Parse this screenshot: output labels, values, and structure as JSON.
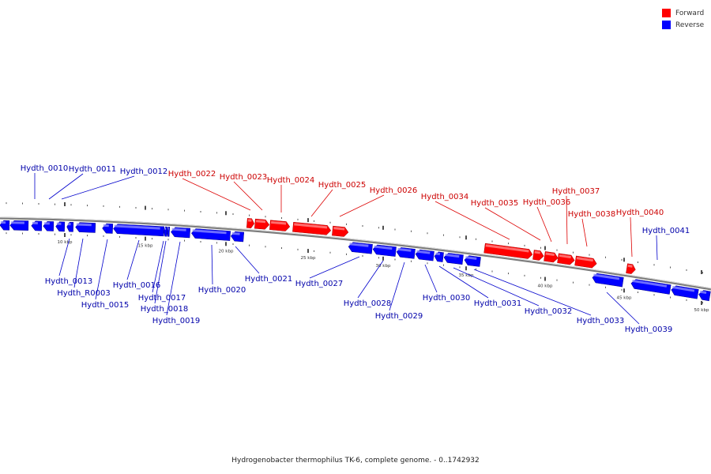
{
  "caption": "Hydrogenobacter thermophilus TK-6, complete genome. - 0..1742932",
  "legend": {
    "forward_label": "Forward",
    "reverse_label": "Reverse",
    "forward_color": "#ff0000",
    "reverse_color": "#0000ff"
  },
  "colors": {
    "forward_label_text": "#cc0000",
    "reverse_label_text": "#0000aa",
    "backbone": "#888888"
  },
  "ticks": [
    "10 kbp",
    "15 kbp",
    "20 kbp",
    "25 kbp",
    "30 kbp",
    "35 kbp",
    "40 kbp",
    "45 kbp",
    "50 kbp"
  ],
  "genes": [
    {
      "name": "Hydth_0010",
      "strand": "reverse"
    },
    {
      "name": "Hydth_0011",
      "strand": "reverse"
    },
    {
      "name": "Hydth_0012",
      "strand": "reverse"
    },
    {
      "name": "Hydth_0013",
      "strand": "reverse"
    },
    {
      "name": "Hydth_R0003",
      "strand": "reverse"
    },
    {
      "name": "Hydth_0015",
      "strand": "reverse"
    },
    {
      "name": "Hydth_0016",
      "strand": "reverse"
    },
    {
      "name": "Hydth_0017",
      "strand": "reverse"
    },
    {
      "name": "Hydth_0018",
      "strand": "reverse"
    },
    {
      "name": "Hydth_0019",
      "strand": "reverse"
    },
    {
      "name": "Hydth_0020",
      "strand": "reverse"
    },
    {
      "name": "Hydth_0021",
      "strand": "reverse"
    },
    {
      "name": "Hydth_0022",
      "strand": "forward"
    },
    {
      "name": "Hydth_0023",
      "strand": "forward"
    },
    {
      "name": "Hydth_0024",
      "strand": "forward"
    },
    {
      "name": "Hydth_0025",
      "strand": "forward"
    },
    {
      "name": "Hydth_0026",
      "strand": "forward"
    },
    {
      "name": "Hydth_0027",
      "strand": "reverse"
    },
    {
      "name": "Hydth_0028",
      "strand": "reverse"
    },
    {
      "name": "Hydth_0029",
      "strand": "reverse"
    },
    {
      "name": "Hydth_0030",
      "strand": "reverse"
    },
    {
      "name": "Hydth_0031",
      "strand": "reverse"
    },
    {
      "name": "Hydth_0032",
      "strand": "reverse"
    },
    {
      "name": "Hydth_0033",
      "strand": "reverse"
    },
    {
      "name": "Hydth_0034",
      "strand": "forward"
    },
    {
      "name": "Hydth_0035",
      "strand": "forward"
    },
    {
      "name": "Hydth_0036",
      "strand": "forward"
    },
    {
      "name": "Hydth_0037",
      "strand": "forward"
    },
    {
      "name": "Hydth_0038",
      "strand": "forward"
    },
    {
      "name": "Hydth_0039",
      "strand": "reverse"
    },
    {
      "name": "Hydth_0040",
      "strand": "forward"
    },
    {
      "name": "Hydth_0041",
      "strand": "reverse"
    }
  ]
}
